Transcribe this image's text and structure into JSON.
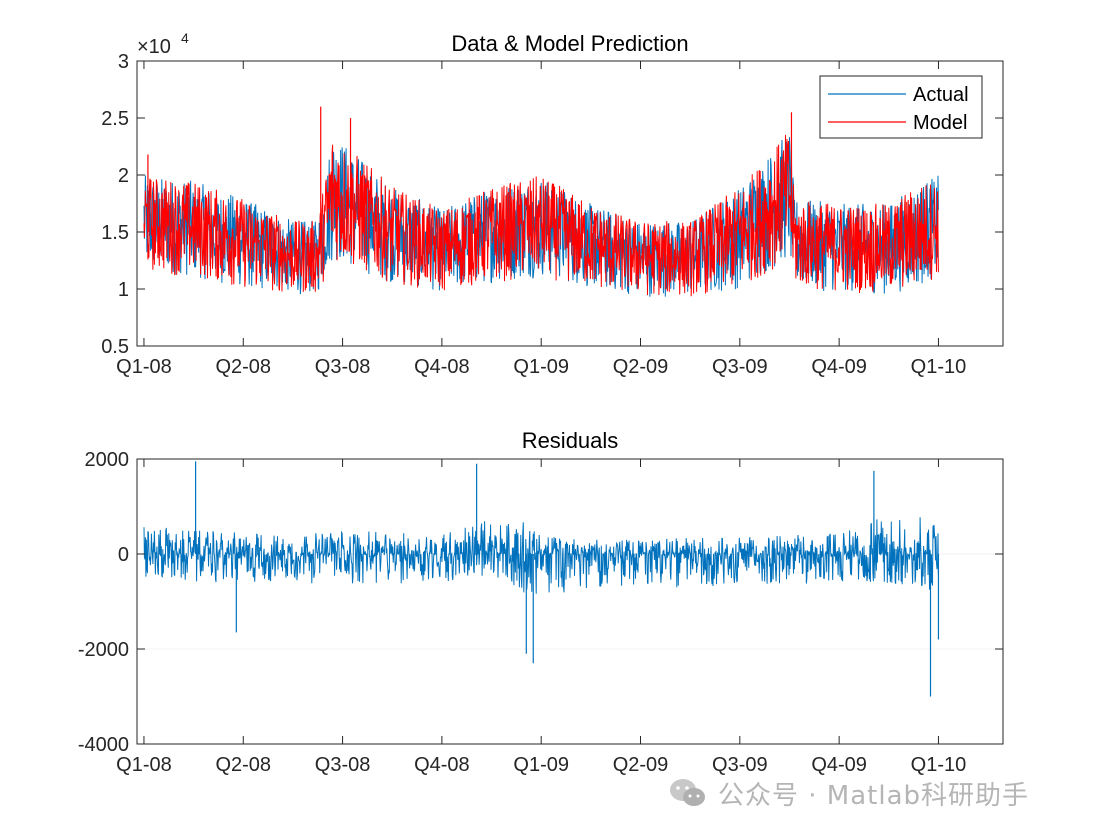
{
  "chart_data": [
    {
      "type": "line",
      "title": "Data & Model Prediction",
      "xlabel": "",
      "ylabel": "",
      "y_exponent_label": "×10",
      "y_exponent_power": "4",
      "ylim": [
        0.5,
        3
      ],
      "yticks": [
        0.5,
        1,
        1.5,
        2,
        2.5,
        3
      ],
      "ytick_labels": [
        "0.5",
        "1",
        "1.5",
        "2",
        "2.5",
        "3"
      ],
      "xlim": [
        -0.07,
        8.65
      ],
      "xticks": [
        0,
        1,
        2,
        3,
        4,
        5,
        6,
        7,
        8
      ],
      "xtick_labels": [
        "Q1-08",
        "Q2-08",
        "Q3-08",
        "Q4-08",
        "Q1-09",
        "Q2-09",
        "Q3-09",
        "Q4-09",
        "Q1-10"
      ],
      "grid": false,
      "legend_position": "top-right",
      "series": [
        {
          "name": "Actual",
          "color": "#0072BD",
          "x": [
            0.0,
            0.5,
            1.0,
            1.5,
            1.75,
            1.9,
            2.0,
            2.5,
            3.0,
            3.5,
            4.0,
            4.5,
            5.0,
            5.5,
            6.0,
            6.5,
            6.55,
            7.0,
            7.5,
            7.75,
            8.0
          ],
          "upper": [
            2.0,
            1.95,
            1.8,
            1.6,
            1.6,
            2.4,
            2.3,
            1.9,
            1.7,
            1.9,
            2.0,
            1.75,
            1.6,
            1.6,
            1.9,
            2.4,
            1.8,
            1.75,
            1.75,
            1.9,
            2.0
          ],
          "lower": [
            1.15,
            1.1,
            1.0,
            0.95,
            0.95,
            1.25,
            1.2,
            1.05,
            0.97,
            1.05,
            1.1,
            1.0,
            0.93,
            0.93,
            1.0,
            1.25,
            1.0,
            0.97,
            0.95,
            1.0,
            1.1
          ]
        },
        {
          "name": "Model",
          "color": "#FF0000",
          "x": [
            0.0,
            0.5,
            1.0,
            1.5,
            1.75,
            1.9,
            2.0,
            2.5,
            3.0,
            3.5,
            4.0,
            4.5,
            5.0,
            5.5,
            6.0,
            6.5,
            6.55,
            7.0,
            7.5,
            7.75,
            8.0
          ],
          "upper": [
            2.0,
            1.95,
            1.8,
            1.6,
            1.6,
            2.4,
            2.3,
            1.9,
            1.7,
            1.9,
            2.0,
            1.75,
            1.6,
            1.6,
            1.9,
            2.4,
            1.8,
            1.75,
            1.75,
            1.9,
            2.0
          ],
          "lower": [
            1.15,
            1.1,
            1.0,
            0.95,
            0.95,
            1.25,
            1.2,
            1.05,
            0.97,
            1.05,
            1.1,
            1.0,
            0.93,
            0.93,
            1.0,
            1.25,
            1.0,
            0.97,
            0.95,
            1.0,
            1.1
          ]
        }
      ],
      "notable_peaks": [
        {
          "x": 1.78,
          "y": 2.6
        },
        {
          "x": 2.08,
          "y": 2.5
        },
        {
          "x": 6.52,
          "y": 2.55
        },
        {
          "x": 0.04,
          "y": 2.18
        }
      ]
    },
    {
      "type": "line",
      "title": "Residuals",
      "xlabel": "",
      "ylabel": "",
      "ylim": [
        -4000,
        2000
      ],
      "yticks": [
        -4000,
        -2000,
        0,
        2000
      ],
      "ytick_labels": [
        "-4000",
        "-2000",
        "0",
        "2000"
      ],
      "xlim": [
        -0.07,
        8.65
      ],
      "xticks": [
        0,
        1,
        2,
        3,
        4,
        5,
        6,
        7,
        8
      ],
      "xtick_labels": [
        "Q1-08",
        "Q2-08",
        "Q3-08",
        "Q4-08",
        "Q1-09",
        "Q2-09",
        "Q3-09",
        "Q4-09",
        "Q1-10"
      ],
      "grid": false,
      "series": [
        {
          "name": "",
          "color": "#0072BD",
          "x": [
            0.0,
            0.5,
            1.0,
            1.5,
            2.0,
            2.5,
            3.0,
            3.4,
            3.8,
            4.0,
            4.5,
            5.0,
            5.5,
            6.0,
            6.5,
            7.0,
            7.4,
            7.8,
            8.0
          ],
          "upper": [
            600,
            500,
            450,
            400,
            500,
            450,
            450,
            700,
            700,
            400,
            300,
            300,
            350,
            350,
            400,
            450,
            750,
            800,
            600
          ],
          "lower": [
            -500,
            -600,
            -600,
            -600,
            -650,
            -650,
            -600,
            -500,
            -800,
            -900,
            -700,
            -700,
            -700,
            -650,
            -650,
            -600,
            -600,
            -700,
            -900
          ]
        }
      ],
      "notable_peaks": [
        {
          "x": 0.52,
          "y": 1950
        },
        {
          "x": 3.35,
          "y": 1900
        },
        {
          "x": 7.35,
          "y": 1750
        },
        {
          "x": 3.85,
          "y": -2100
        },
        {
          "x": 3.92,
          "y": -2300
        },
        {
          "x": 7.92,
          "y": -3000
        },
        {
          "x": 8.0,
          "y": -1800
        },
        {
          "x": 0.93,
          "y": -1650
        }
      ]
    }
  ],
  "watermark": {
    "text": "公众号 · Matlab科研助手",
    "icon": "wechat-icon"
  }
}
